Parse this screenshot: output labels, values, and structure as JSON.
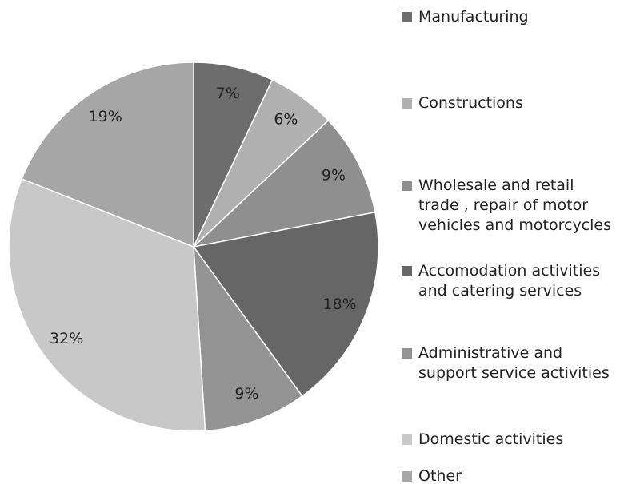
{
  "chart_data": {
    "type": "pie",
    "categories": [
      "Manufacturing",
      "Constructions",
      "Wholesale and retail trade , repair of motor vehicles and motorcycles",
      "Accomodation activities and catering services",
      "Administrative and support service activities",
      "Domestic activities",
      "Other"
    ],
    "values": [
      7,
      6,
      9,
      18,
      9,
      32,
      19
    ],
    "value_labels": [
      "7%",
      "6%",
      "9%",
      "18%",
      "9%",
      "32%",
      "19%"
    ],
    "colors": [
      "#6d6d6d",
      "#b0b0b0",
      "#8f8f8f",
      "#666666",
      "#939393",
      "#c8c8c8",
      "#a6a6a6"
    ],
    "legend": "right"
  }
}
